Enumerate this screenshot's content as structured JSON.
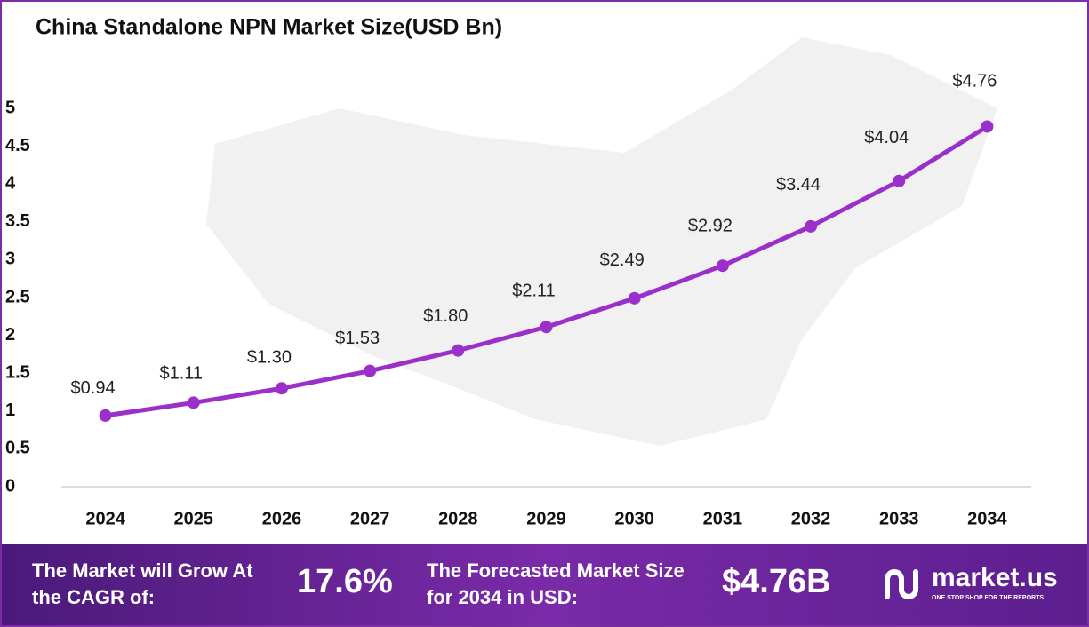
{
  "chart_data": {
    "type": "line",
    "title": "China Standalone NPN Market Size(USD Bn)",
    "categories": [
      "2024",
      "2025",
      "2026",
      "2027",
      "2028",
      "2029",
      "2030",
      "2031",
      "2032",
      "2033",
      "2034"
    ],
    "values": [
      0.94,
      1.11,
      1.3,
      1.53,
      1.8,
      2.11,
      2.49,
      2.92,
      3.44,
      4.04,
      4.76
    ],
    "value_labels": [
      "$0.94",
      "$1.11",
      "$1.30",
      "$1.53",
      "$1.80",
      "$2.11",
      "$2.49",
      "$2.92",
      "$3.44",
      "$4.04",
      "$4.76"
    ],
    "color": "#9b2fc9",
    "ylim": [
      0,
      5
    ],
    "yticks": [
      0,
      0.5,
      1,
      1.5,
      2,
      2.5,
      3,
      3.5,
      4,
      4.5,
      5
    ],
    "grid": false
  },
  "footer": {
    "cagr_text": "The Market will Grow At the CAGR of:",
    "cagr_value": "17.6%",
    "forecast_text": "The Forecasted Market Size for 2034 in USD:",
    "forecast_value": "$4.76B",
    "brand": "market.us",
    "tagline": "ONE STOP SHOP FOR THE REPORTS"
  }
}
